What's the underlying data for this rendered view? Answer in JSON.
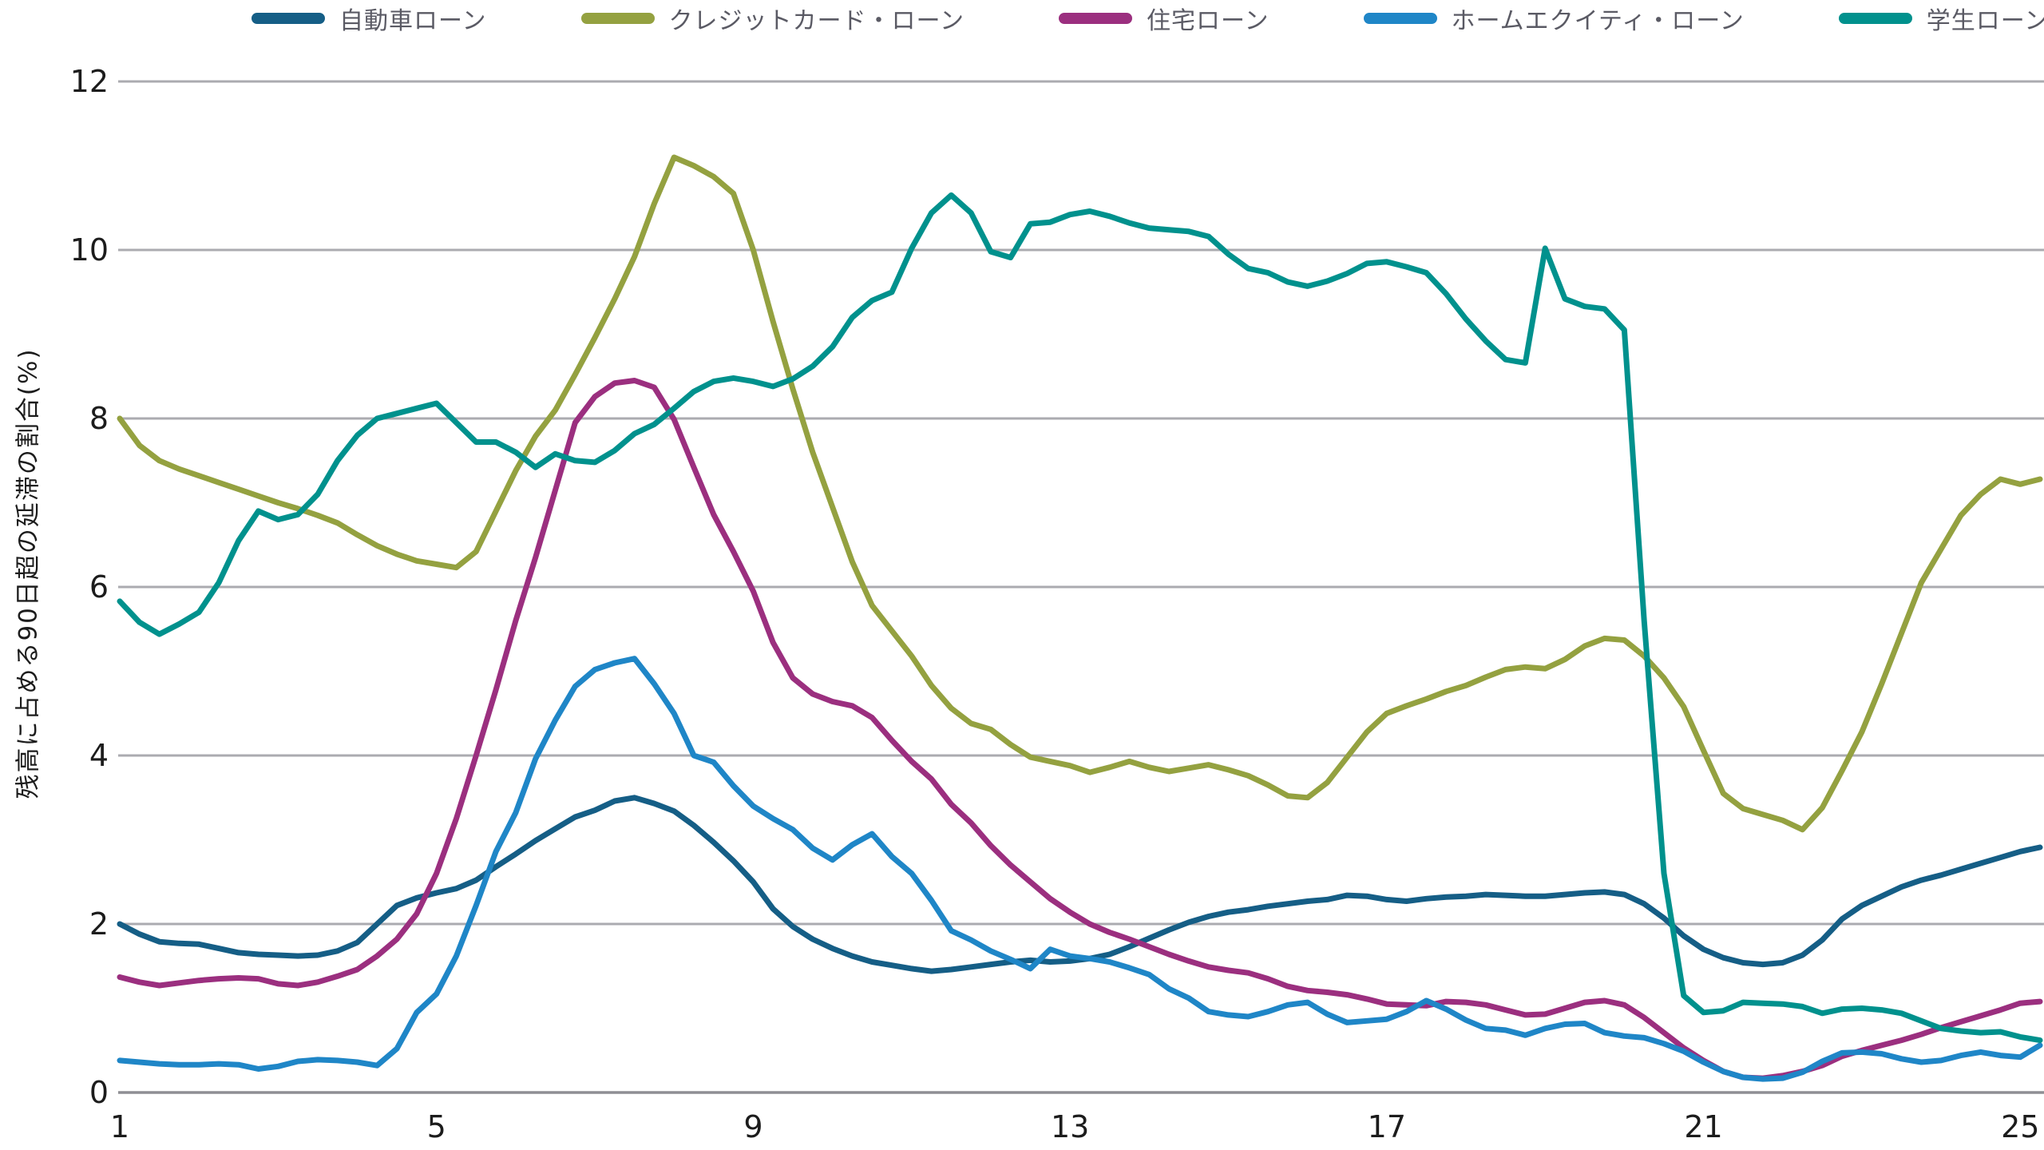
{
  "legend_color_note": "series colors double as legend swatch colors",
  "y_axis_title": "残高に占める90日超の延滞の割合(%)",
  "chart_data": {
    "type": "line",
    "title": "",
    "xlabel": "",
    "ylabel": "残高に占める90日超の延滞の割合(%)",
    "x_ticks": [
      1,
      5,
      9,
      13,
      17,
      21,
      25
    ],
    "y_ticks": [
      0,
      2,
      4,
      6,
      8,
      10,
      12
    ],
    "xlim": [
      1,
      25.3
    ],
    "ylim": [
      0,
      12.4
    ],
    "grid": "horizontal-only",
    "legend_position": "top",
    "x_start": 1,
    "x_step": 0.25,
    "series": [
      {
        "name": "自動車ローン",
        "color": "#155E86",
        "values": [
          2.0,
          1.88,
          1.79,
          1.77,
          1.76,
          1.71,
          1.66,
          1.64,
          1.63,
          1.62,
          1.63,
          1.68,
          1.78,
          2.0,
          2.22,
          2.31,
          2.37,
          2.42,
          2.52,
          2.68,
          2.83,
          2.99,
          3.13,
          3.27,
          3.35,
          3.46,
          3.5,
          3.43,
          3.34,
          3.17,
          2.97,
          2.75,
          2.5,
          2.18,
          1.97,
          1.82,
          1.71,
          1.62,
          1.55,
          1.51,
          1.47,
          1.44,
          1.46,
          1.49,
          1.52,
          1.55,
          1.57,
          1.55,
          1.56,
          1.59,
          1.64,
          1.73,
          1.83,
          1.93,
          2.02,
          2.09,
          2.14,
          2.17,
          2.21,
          2.24,
          2.27,
          2.29,
          2.34,
          2.33,
          2.29,
          2.27,
          2.3,
          2.32,
          2.33,
          2.35,
          2.34,
          2.33,
          2.33,
          2.35,
          2.37,
          2.38,
          2.35,
          2.24,
          2.07,
          1.86,
          1.7,
          1.6,
          1.54,
          1.52,
          1.54,
          1.63,
          1.81,
          2.06,
          2.22,
          2.33,
          2.44,
          2.52,
          2.58,
          2.65,
          2.72,
          2.79,
          2.86,
          2.91
        ]
      },
      {
        "name": "クレジットカード・ローン",
        "color": "#94A140",
        "values": [
          8.0,
          7.68,
          7.5,
          7.4,
          7.32,
          7.24,
          7.16,
          7.08,
          7.0,
          6.93,
          6.85,
          6.76,
          6.62,
          6.49,
          6.39,
          6.31,
          6.27,
          6.23,
          6.42,
          6.9,
          7.38,
          7.79,
          8.1,
          8.52,
          8.96,
          9.42,
          9.92,
          10.55,
          11.1,
          11.0,
          10.87,
          10.67,
          10.0,
          9.15,
          8.35,
          7.6,
          6.95,
          6.3,
          5.78,
          5.48,
          5.18,
          4.83,
          4.56,
          4.38,
          4.31,
          4.13,
          3.98,
          3.93,
          3.88,
          3.8,
          3.86,
          3.93,
          3.86,
          3.81,
          3.85,
          3.89,
          3.83,
          3.76,
          3.65,
          3.52,
          3.5,
          3.68,
          3.98,
          4.28,
          4.5,
          4.59,
          4.67,
          4.76,
          4.83,
          4.93,
          5.02,
          5.05,
          5.03,
          5.14,
          5.3,
          5.39,
          5.37,
          5.18,
          4.92,
          4.58,
          4.06,
          3.55,
          3.37,
          3.3,
          3.23,
          3.12,
          3.38,
          3.82,
          4.28,
          4.85,
          5.45,
          6.05,
          6.45,
          6.85,
          7.1,
          7.28,
          7.22,
          7.28
        ]
      },
      {
        "name": "住宅ローン",
        "color": "#9B2F7F",
        "values": [
          1.37,
          1.31,
          1.27,
          1.3,
          1.33,
          1.35,
          1.36,
          1.35,
          1.29,
          1.27,
          1.31,
          1.38,
          1.46,
          1.62,
          1.82,
          2.12,
          2.6,
          3.25,
          4.0,
          4.78,
          5.6,
          6.35,
          7.15,
          7.95,
          8.26,
          8.42,
          8.45,
          8.37,
          7.99,
          7.42,
          6.86,
          6.42,
          5.95,
          5.34,
          4.92,
          4.73,
          4.64,
          4.59,
          4.45,
          4.18,
          3.93,
          3.72,
          3.42,
          3.2,
          2.93,
          2.7,
          2.5,
          2.3,
          2.14,
          2.0,
          1.9,
          1.82,
          1.73,
          1.64,
          1.56,
          1.49,
          1.45,
          1.42,
          1.35,
          1.26,
          1.21,
          1.19,
          1.16,
          1.11,
          1.05,
          1.04,
          1.03,
          1.08,
          1.07,
          1.04,
          0.98,
          0.92,
          0.93,
          1.0,
          1.07,
          1.09,
          1.04,
          0.89,
          0.71,
          0.53,
          0.38,
          0.25,
          0.18,
          0.17,
          0.2,
          0.25,
          0.32,
          0.43,
          0.5,
          0.56,
          0.62,
          0.69,
          0.77,
          0.84,
          0.91,
          0.98,
          1.06,
          1.08
        ]
      },
      {
        "name": "ホームエクイティ・ローン",
        "color": "#1F86C7",
        "values": [
          0.38,
          0.36,
          0.34,
          0.33,
          0.33,
          0.34,
          0.33,
          0.28,
          0.31,
          0.37,
          0.39,
          0.38,
          0.36,
          0.32,
          0.52,
          0.95,
          1.17,
          1.62,
          2.22,
          2.86,
          3.32,
          3.96,
          4.42,
          4.82,
          5.02,
          5.1,
          5.15,
          4.85,
          4.5,
          4.0,
          3.92,
          3.64,
          3.4,
          3.25,
          3.12,
          2.9,
          2.76,
          2.94,
          3.07,
          2.8,
          2.6,
          2.28,
          1.92,
          1.81,
          1.68,
          1.58,
          1.47,
          1.7,
          1.62,
          1.59,
          1.55,
          1.48,
          1.4,
          1.23,
          1.12,
          0.96,
          0.92,
          0.9,
          0.96,
          1.04,
          1.07,
          0.93,
          0.83,
          0.85,
          0.87,
          0.96,
          1.09,
          0.99,
          0.86,
          0.76,
          0.74,
          0.68,
          0.76,
          0.81,
          0.82,
          0.71,
          0.67,
          0.65,
          0.58,
          0.49,
          0.36,
          0.25,
          0.18,
          0.16,
          0.17,
          0.24,
          0.37,
          0.47,
          0.48,
          0.46,
          0.4,
          0.36,
          0.38,
          0.44,
          0.48,
          0.44,
          0.42,
          0.56
        ]
      },
      {
        "name": "学生ローン",
        "color": "#00918D",
        "values": [
          5.83,
          5.58,
          5.44,
          5.56,
          5.7,
          6.05,
          6.55,
          6.9,
          6.8,
          6.86,
          7.1,
          7.5,
          7.8,
          8.0,
          8.06,
          8.12,
          8.18,
          7.95,
          7.72,
          7.72,
          7.6,
          7.42,
          7.58,
          7.5,
          7.48,
          7.62,
          7.82,
          7.93,
          8.12,
          8.32,
          8.44,
          8.48,
          8.44,
          8.38,
          8.47,
          8.62,
          8.85,
          9.2,
          9.4,
          9.5,
          10.02,
          10.44,
          10.65,
          10.44,
          9.98,
          9.91,
          10.31,
          10.33,
          10.42,
          10.46,
          10.4,
          10.32,
          10.26,
          10.24,
          10.22,
          10.16,
          9.95,
          9.78,
          9.73,
          9.62,
          9.57,
          9.63,
          9.72,
          9.84,
          9.86,
          9.8,
          9.73,
          9.48,
          9.18,
          8.92,
          8.7,
          8.66,
          10.02,
          9.42,
          9.33,
          9.3,
          9.05,
          5.6,
          2.6,
          1.15,
          0.95,
          0.97,
          1.07,
          1.06,
          1.05,
          1.02,
          0.94,
          0.99,
          1.0,
          0.98,
          0.94,
          0.85,
          0.76,
          0.73,
          0.71,
          0.72,
          0.66,
          0.62
        ]
      }
    ],
    "style": {
      "background": "#ffffff",
      "grid_color": "#ABABB0",
      "axis_line_color": "#8F8F94",
      "tick_label_color": "#1c1c1c",
      "legend_text_color": "#5a5a64",
      "line_width": 7
    }
  }
}
